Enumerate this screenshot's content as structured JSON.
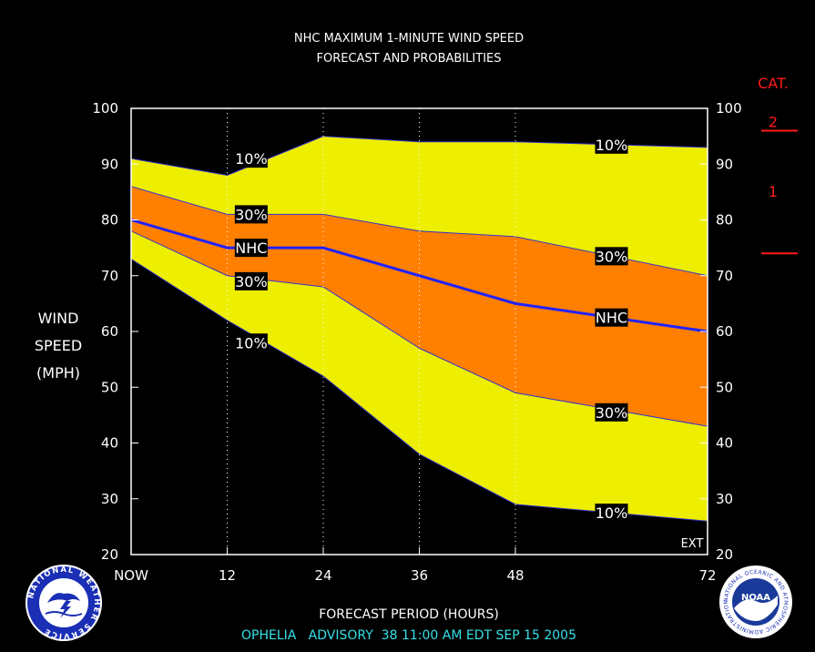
{
  "chart_data": {
    "type": "area",
    "title": "NHC MAXIMUM 1-MINUTE WIND SPEED",
    "subtitle": "FORECAST AND PROBABILITIES",
    "xlabel": "FORECAST PERIOD (HOURS)",
    "ylabel_lines": [
      "WIND",
      "SPEED",
      "(MPH)"
    ],
    "footer": "OPHELIA   ADVISORY  38 11:00 AM EDT SEP 15 2005",
    "ext_label": "EXT",
    "category_header": "CAT.",
    "categories": [
      {
        "label": "2",
        "lower": 96
      },
      {
        "label": "1",
        "lower": 74
      }
    ],
    "x_ticks": [
      {
        "value": 0,
        "label": "NOW"
      },
      {
        "value": 12,
        "label": "12"
      },
      {
        "value": 24,
        "label": "24"
      },
      {
        "value": 36,
        "label": "36"
      },
      {
        "value": 48,
        "label": "48"
      },
      {
        "value": 72,
        "label": "72"
      }
    ],
    "xlim": [
      0,
      72
    ],
    "ylim": [
      20,
      100
    ],
    "y_ticks": [
      20,
      30,
      40,
      50,
      60,
      70,
      80,
      90,
      100
    ],
    "grid_x": [
      12,
      24,
      36,
      48
    ],
    "x": [
      0,
      12,
      24,
      36,
      48,
      72
    ],
    "series": [
      {
        "name": "10%",
        "role": "upper",
        "values": [
          91,
          88,
          95,
          94,
          94,
          93
        ]
      },
      {
        "name": "30%",
        "role": "upper",
        "values": [
          86,
          81,
          81,
          78,
          77,
          70
        ]
      },
      {
        "name": "NHC",
        "role": "forecast",
        "values": [
          80,
          75,
          75,
          70,
          65,
          60
        ]
      },
      {
        "name": "30%",
        "role": "lower",
        "values": [
          78,
          70,
          68,
          57,
          49,
          43
        ]
      },
      {
        "name": "10%",
        "role": "lower",
        "values": [
          73,
          62,
          52,
          38,
          29,
          26
        ]
      }
    ],
    "labels": [
      {
        "text": "10%",
        "x": 15,
        "y": 91
      },
      {
        "text": "30%",
        "x": 15,
        "y": 81
      },
      {
        "text": "NHC",
        "x": 15,
        "y": 75
      },
      {
        "text": "30%",
        "x": 15,
        "y": 69
      },
      {
        "text": "10%",
        "x": 15,
        "y": 58
      },
      {
        "text": "10%",
        "x": 60,
        "y": 93.5
      },
      {
        "text": "30%",
        "x": 60,
        "y": 73.5
      },
      {
        "text": "NHC",
        "x": 60,
        "y": 62.5
      },
      {
        "text": "30%",
        "x": 60,
        "y": 45.5
      },
      {
        "text": "10%",
        "x": 60,
        "y": 27.5
      }
    ],
    "colors": {
      "outer_band": "#eeee00",
      "inner_band": "#ff7f00",
      "forecast_line": "#2222ff",
      "background": "#000000",
      "axes": "#ffffff",
      "category": "#ff1a1a",
      "footer": "#33e0e8"
    },
    "grid": true
  },
  "logos": {
    "nws_text": "NATIONAL WEATHER SERVICE",
    "noaa_text": "NOAA",
    "noaa_ring": "NATIONAL OCEANIC AND ATMOSPHERIC ADMINISTRATION U.S. DEPARTMENT OF COMMERCE"
  }
}
